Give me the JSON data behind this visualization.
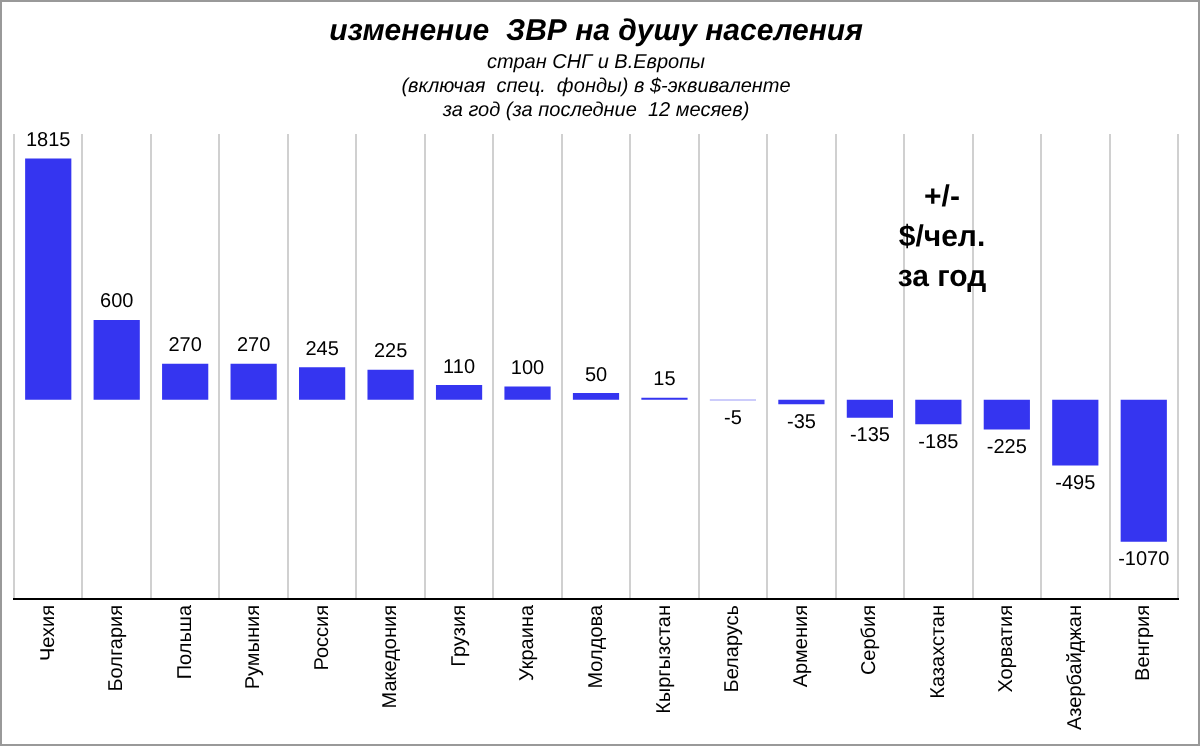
{
  "chart_data": {
    "type": "bar",
    "title": "изменение  ЗВР на душу населения",
    "subtitle": "стран СНГ и В.Европы\n(включая  спец.  фонды) в $-эквиваленте\nза год (за последние  12 месяев)",
    "categories": [
      "Чехия",
      "Болгария",
      "Польша",
      "Румыния",
      "Россия",
      "Македония",
      "Грузия",
      "Украина",
      "Молдова",
      "Кыргызстан",
      "Беларусь",
      "Армения",
      "Сербия",
      "Казахстан",
      "Хорватия",
      "Азербайджан",
      "Венгрия"
    ],
    "values": [
      1815,
      600,
      270,
      270,
      245,
      225,
      110,
      100,
      50,
      15,
      -5,
      -35,
      -135,
      -185,
      -225,
      -495,
      -1070
    ],
    "color": "#3535f0",
    "data_labels": true,
    "grid": "x",
    "tick_labels": "x",
    "legend": false,
    "annotations": [
      "+/-\n$/чел.\nза год"
    ]
  }
}
